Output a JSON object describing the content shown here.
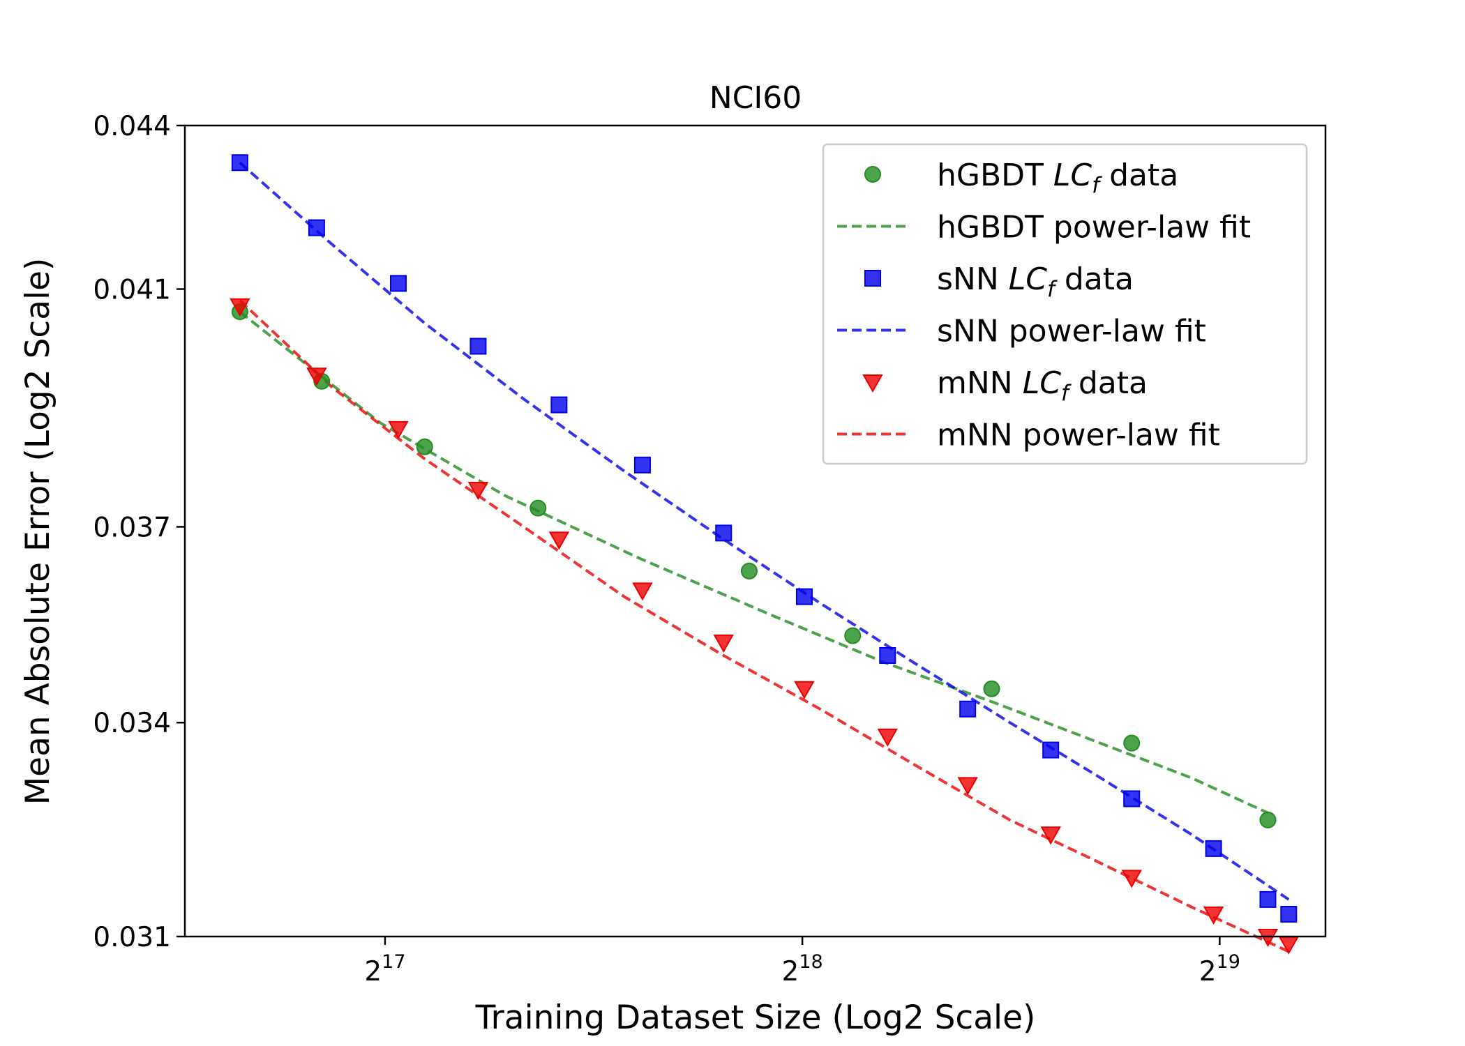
{
  "chart_data": {
    "type": "scatter",
    "title": "NCI60",
    "xlabel": "Training Dataset Size (Log2 Scale)",
    "ylabel": "Mean Absolute Error (Log2 Scale)",
    "x_scale": "log2",
    "y_scale": "log2",
    "grid": false,
    "legend_position": "top-right",
    "xlim": [
      94000,
      625000
    ],
    "ylim": [
      0.031,
      0.044
    ],
    "x_ticks": [
      {
        "value": 131072,
        "base": "2",
        "exp": "17"
      },
      {
        "value": 262144,
        "base": "2",
        "exp": "18"
      },
      {
        "value": 524288,
        "base": "2",
        "exp": "19"
      }
    ],
    "y_ticks": [
      {
        "value": 0.031,
        "label": "0.031"
      },
      {
        "value": 0.034,
        "label": "0.034"
      },
      {
        "value": 0.037,
        "label": "0.037"
      },
      {
        "value": 0.041,
        "label": "0.041"
      },
      {
        "value": 0.044,
        "label": "0.044"
      }
    ],
    "series": [
      {
        "name_prefix": "hGBDT ",
        "name_italic": "LC",
        "name_sub": "f",
        "name_suffix": " data",
        "kind": "points",
        "marker": "circle",
        "color": "#228b22",
        "x": [
          103000,
          118000,
          140000,
          169000,
          240000,
          285000,
          359000,
          453000,
          568000
        ],
        "y": [
          0.0406,
          0.0394,
          0.0383,
          0.0373,
          0.0363,
          0.0353,
          0.0345,
          0.0337,
          0.0326
        ]
      },
      {
        "name": "hGBDT power-law fit",
        "kind": "line",
        "color": "#228b22",
        "x": [
          103000,
          130000,
          160000,
          200000,
          250000,
          300000,
          360000,
          430000,
          500000,
          568000
        ],
        "y": [
          0.0406,
          0.0387,
          0.0375,
          0.0365,
          0.0356,
          0.0349,
          0.0343,
          0.0337,
          0.0332,
          0.0327
        ]
      },
      {
        "name_prefix": "sNN ",
        "name_italic": "LC",
        "name_sub": "f",
        "name_suffix": " data",
        "kind": "points",
        "marker": "square",
        "color": "#0000ee",
        "x": [
          103000,
          117000,
          134000,
          153000,
          175000,
          201000,
          230000,
          263000,
          302000,
          345000,
          396000,
          453000,
          519000,
          568000,
          588000
        ],
        "y": [
          0.0433,
          0.0421,
          0.0411,
          0.04,
          0.039,
          0.038,
          0.0369,
          0.0359,
          0.035,
          0.0342,
          0.0336,
          0.0329,
          0.0322,
          0.0315,
          0.0313
        ]
      },
      {
        "name": "sNN power-law fit",
        "kind": "line",
        "color": "#0000ee",
        "x": [
          103000,
          120000,
          140000,
          165000,
          195000,
          230000,
          270000,
          315000,
          370000,
          430000,
          500000,
          588000
        ],
        "y": [
          0.0433,
          0.0418,
          0.0404,
          0.0391,
          0.0379,
          0.0368,
          0.0358,
          0.0349,
          0.034,
          0.0332,
          0.0324,
          0.0315
        ]
      },
      {
        "name_prefix": "mNN ",
        "name_italic": "LC",
        "name_sub": "f",
        "name_suffix": " data",
        "kind": "points",
        "marker": "triangle-down",
        "color": "#ee0000",
        "x": [
          103000,
          117000,
          134000,
          153000,
          175000,
          201000,
          230000,
          263000,
          302000,
          345000,
          396000,
          453000,
          519000,
          568000,
          588000
        ],
        "y": [
          0.0407,
          0.0395,
          0.0386,
          0.0376,
          0.0368,
          0.036,
          0.0352,
          0.0345,
          0.0338,
          0.0331,
          0.0324,
          0.0318,
          0.0313,
          0.031,
          0.0309
        ]
      },
      {
        "name": "mNN power-law fit",
        "kind": "line",
        "color": "#ee0000",
        "x": [
          103000,
          120000,
          140000,
          165000,
          195000,
          230000,
          270000,
          315000,
          370000,
          430000,
          500000,
          588000
        ],
        "y": [
          0.0408,
          0.0393,
          0.0381,
          0.037,
          0.0359,
          0.035,
          0.0342,
          0.0334,
          0.0326,
          0.032,
          0.0314,
          0.0308
        ]
      }
    ]
  }
}
